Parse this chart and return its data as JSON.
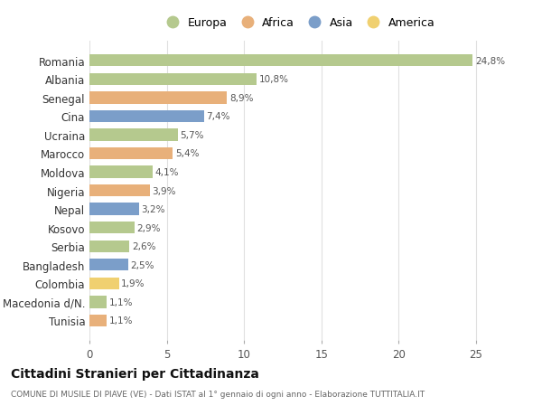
{
  "countries": [
    "Romania",
    "Albania",
    "Senegal",
    "Cina",
    "Ucraina",
    "Marocco",
    "Moldova",
    "Nigeria",
    "Nepal",
    "Kosovo",
    "Serbia",
    "Bangladesh",
    "Colombia",
    "Macedonia d/N.",
    "Tunisia"
  ],
  "values": [
    24.8,
    10.8,
    8.9,
    7.4,
    5.7,
    5.4,
    4.1,
    3.9,
    3.2,
    2.9,
    2.6,
    2.5,
    1.9,
    1.1,
    1.1
  ],
  "labels": [
    "24,8%",
    "10,8%",
    "8,9%",
    "7,4%",
    "5,7%",
    "5,4%",
    "4,1%",
    "3,9%",
    "3,2%",
    "2,9%",
    "2,6%",
    "2,5%",
    "1,9%",
    "1,1%",
    "1,1%"
  ],
  "continents": [
    "Europa",
    "Europa",
    "Africa",
    "Asia",
    "Europa",
    "Africa",
    "Europa",
    "Africa",
    "Asia",
    "Europa",
    "Europa",
    "Asia",
    "America",
    "Europa",
    "Africa"
  ],
  "colors": {
    "Europa": "#b5c98e",
    "Africa": "#e8b07a",
    "Asia": "#7b9ec9",
    "America": "#f0d070"
  },
  "legend_order": [
    "Europa",
    "Africa",
    "Asia",
    "America"
  ],
  "title": "Cittadini Stranieri per Cittadinanza",
  "subtitle": "COMUNE DI MUSILE DI PIAVE (VE) - Dati ISTAT al 1° gennaio di ogni anno - Elaborazione TUTTITALIA.IT",
  "xlim": [
    0,
    27
  ],
  "xticks": [
    0,
    5,
    10,
    15,
    20,
    25
  ],
  "bg_color": "#ffffff",
  "grid_color": "#e0e0e0"
}
